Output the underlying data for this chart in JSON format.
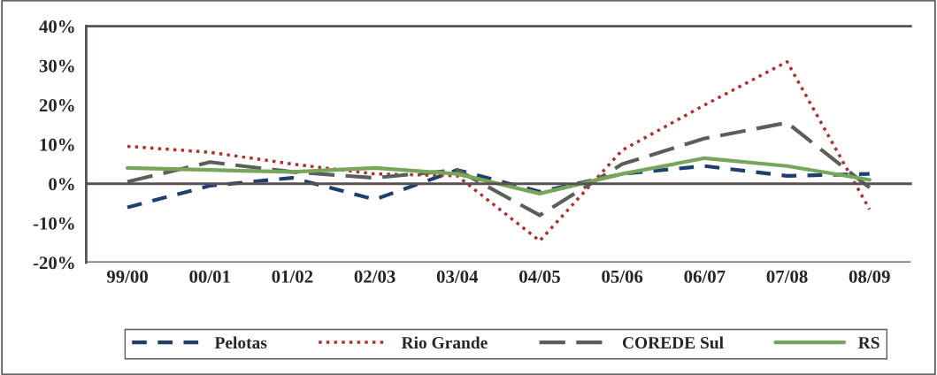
{
  "chart_data": {
    "type": "line",
    "categories": [
      "99/00",
      "00/01",
      "01/02",
      "02/03",
      "03/04",
      "04/05",
      "05/06",
      "06/07",
      "07/08",
      "08/09"
    ],
    "series": [
      {
        "name": "Pelotas",
        "color": "#1f3f6e",
        "line_style": "dashed",
        "values": [
          -6,
          -0.5,
          1.5,
          -4,
          3.5,
          -2,
          2.5,
          4.5,
          2,
          2.5
        ]
      },
      {
        "name": "Rio Grande",
        "color": "#b03030",
        "line_style": "dotted",
        "values": [
          9.5,
          8,
          5,
          2.5,
          2,
          -14.5,
          8.5,
          20,
          31,
          -6.5
        ]
      },
      {
        "name": "COREDE Sul",
        "color": "#5a5f5a",
        "line_style": "longdash",
        "values": [
          0.5,
          5.5,
          3,
          1.5,
          3.5,
          -8,
          5,
          11.5,
          15.5,
          -1
        ]
      },
      {
        "name": "RS",
        "color": "#77a55a",
        "line_style": "solid",
        "values": [
          4,
          3.5,
          3,
          4,
          2.5,
          -2.5,
          2.5,
          6.5,
          4.5,
          1
        ]
      }
    ],
    "ylim": [
      -20,
      40
    ],
    "yticks": [
      {
        "value": -20,
        "label": "-20%"
      },
      {
        "value": -10,
        "label": "-10%"
      },
      {
        "value": 0,
        "label": "0%"
      },
      {
        "value": 10,
        "label": "10%"
      },
      {
        "value": 20,
        "label": "20%"
      },
      {
        "value": 30,
        "label": "30%"
      },
      {
        "value": 40,
        "label": "40%"
      }
    ],
    "legend": "bottom"
  }
}
